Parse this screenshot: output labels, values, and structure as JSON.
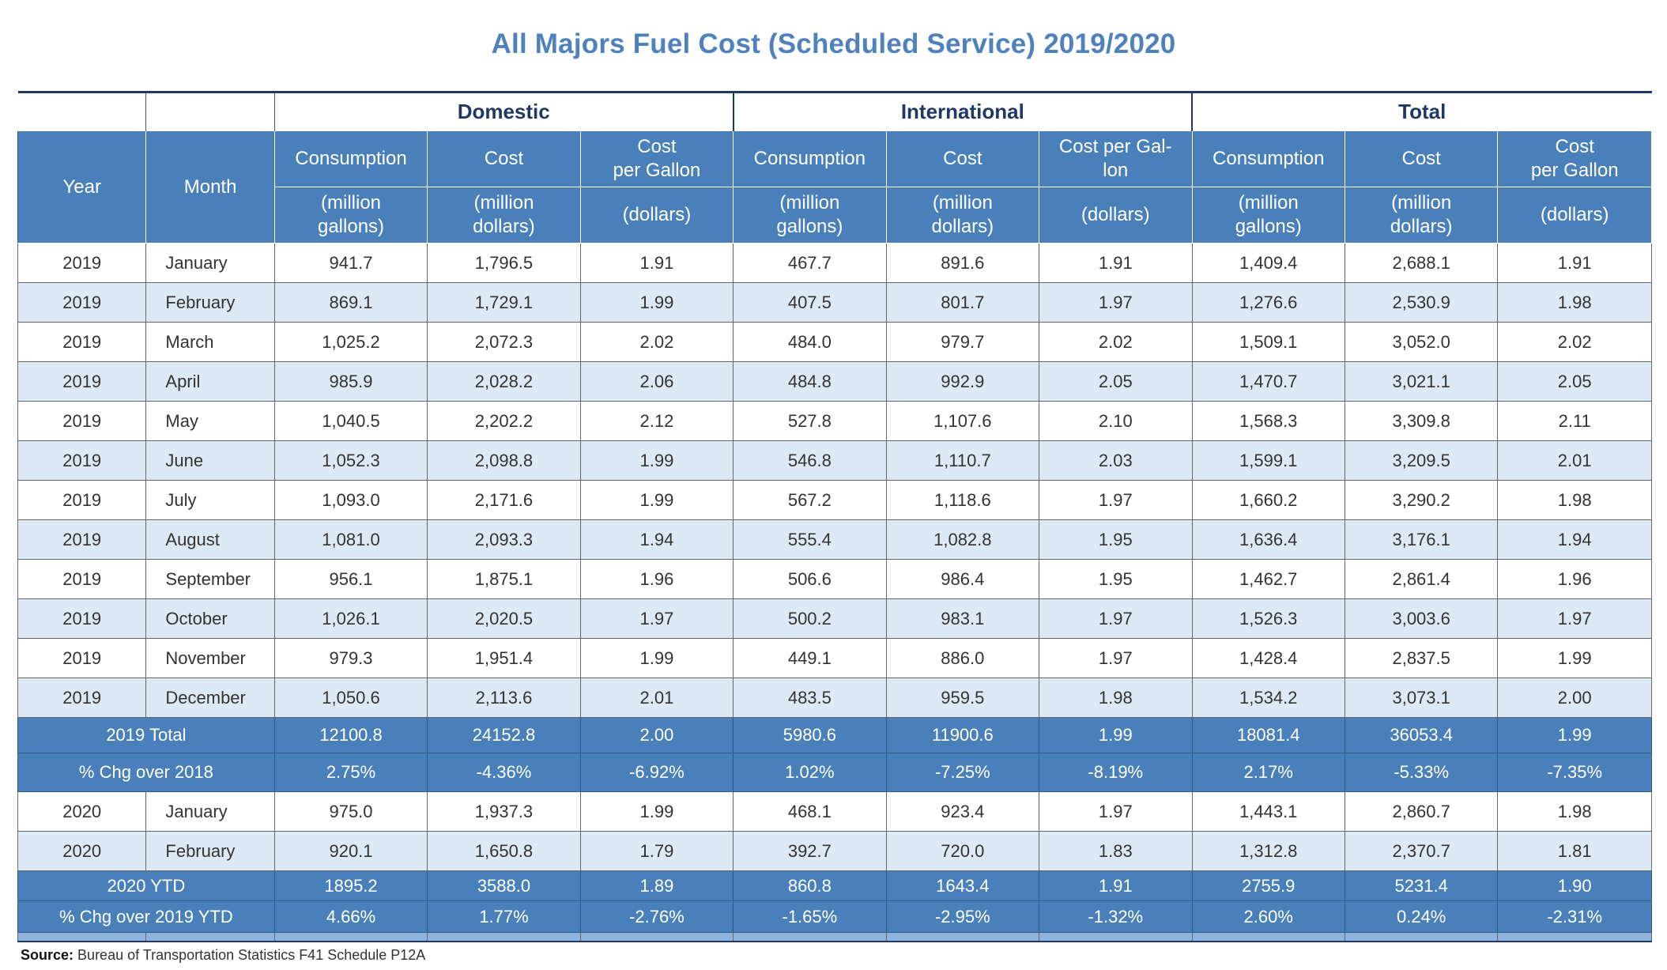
{
  "title": "All Majors Fuel Cost (Scheduled Service) 2019/2020",
  "groups": {
    "domestic": "Domestic",
    "international": "International",
    "total": "Total"
  },
  "headers": {
    "year": "Year",
    "month": "Month",
    "consumption": "Consumption",
    "cost": "Cost",
    "cost_per_gallon_line1": "Cost",
    "cost_per_gallon_line2": "per Gallon",
    "intl_cpg_line1": "Cost per Gal-",
    "intl_cpg_line2": "lon",
    "unit_gallons_1": "(million",
    "unit_gallons_2": "gallons)",
    "unit_dollars_1": "(million",
    "unit_dollars_2": "dollars)",
    "unit_per_gallon": "(dollars)"
  },
  "rows_2019": [
    {
      "year": "2019",
      "month": "January",
      "d": [
        "941.7",
        "1,796.5",
        "1.91"
      ],
      "i": [
        "467.7",
        "891.6",
        "1.91"
      ],
      "t": [
        "1,409.4",
        "2,688.1",
        "1.91"
      ]
    },
    {
      "year": "2019",
      "month": "February",
      "d": [
        "869.1",
        "1,729.1",
        "1.99"
      ],
      "i": [
        "407.5",
        "801.7",
        "1.97"
      ],
      "t": [
        "1,276.6",
        "2,530.9",
        "1.98"
      ]
    },
    {
      "year": "2019",
      "month": "March",
      "d": [
        "1,025.2",
        "2,072.3",
        "2.02"
      ],
      "i": [
        "484.0",
        "979.7",
        "2.02"
      ],
      "t": [
        "1,509.1",
        "3,052.0",
        "2.02"
      ]
    },
    {
      "year": "2019",
      "month": "April",
      "d": [
        "985.9",
        "2,028.2",
        "2.06"
      ],
      "i": [
        "484.8",
        "992.9",
        "2.05"
      ],
      "t": [
        "1,470.7",
        "3,021.1",
        "2.05"
      ]
    },
    {
      "year": "2019",
      "month": "May",
      "d": [
        "1,040.5",
        "2,202.2",
        "2.12"
      ],
      "i": [
        "527.8",
        "1,107.6",
        "2.10"
      ],
      "t": [
        "1,568.3",
        "3,309.8",
        "2.11"
      ]
    },
    {
      "year": "2019",
      "month": "June",
      "d": [
        "1,052.3",
        "2,098.8",
        "1.99"
      ],
      "i": [
        "546.8",
        "1,110.7",
        "2.03"
      ],
      "t": [
        "1,599.1",
        "3,209.5",
        "2.01"
      ]
    },
    {
      "year": "2019",
      "month": "July",
      "d": [
        "1,093.0",
        "2,171.6",
        "1.99"
      ],
      "i": [
        "567.2",
        "1,118.6",
        "1.97"
      ],
      "t": [
        "1,660.2",
        "3,290.2",
        "1.98"
      ]
    },
    {
      "year": "2019",
      "month": "August",
      "d": [
        "1,081.0",
        "2,093.3",
        "1.94"
      ],
      "i": [
        "555.4",
        "1,082.8",
        "1.95"
      ],
      "t": [
        "1,636.4",
        "3,176.1",
        "1.94"
      ]
    },
    {
      "year": "2019",
      "month": "September",
      "d": [
        "956.1",
        "1,875.1",
        "1.96"
      ],
      "i": [
        "506.6",
        "986.4",
        "1.95"
      ],
      "t": [
        "1,462.7",
        "2,861.4",
        "1.96"
      ]
    },
    {
      "year": "2019",
      "month": "October",
      "d": [
        "1,026.1",
        "2,020.5",
        "1.97"
      ],
      "i": [
        "500.2",
        "983.1",
        "1.97"
      ],
      "t": [
        "1,526.3",
        "3,003.6",
        "1.97"
      ]
    },
    {
      "year": "2019",
      "month": "November",
      "d": [
        "979.3",
        "1,951.4",
        "1.99"
      ],
      "i": [
        "449.1",
        "886.0",
        "1.97"
      ],
      "t": [
        "1,428.4",
        "2,837.5",
        "1.99"
      ]
    },
    {
      "year": "2019",
      "month": "December",
      "d": [
        "1,050.6",
        "2,113.6",
        "2.01"
      ],
      "i": [
        "483.5",
        "959.5",
        "1.98"
      ],
      "t": [
        "1,534.2",
        "3,073.1",
        "2.00"
      ]
    }
  ],
  "total_2019": {
    "label": "2019 Total",
    "values": [
      "12100.8",
      "24152.8",
      "2.00",
      "5980.6",
      "11900.6",
      "1.99",
      "18081.4",
      "36053.4",
      "1.99"
    ]
  },
  "chg_2018": {
    "label": "% Chg over 2018",
    "values": [
      "2.75%",
      "-4.36%",
      "-6.92%",
      "1.02%",
      "-7.25%",
      "-8.19%",
      "2.17%",
      "-5.33%",
      "-7.35%"
    ]
  },
  "rows_2020": [
    {
      "year": "2020",
      "month": "January",
      "d": [
        "975.0",
        "1,937.3",
        "1.99"
      ],
      "i": [
        "468.1",
        "923.4",
        "1.97"
      ],
      "t": [
        "1,443.1",
        "2,860.7",
        "1.98"
      ]
    },
    {
      "year": "2020",
      "month": "February",
      "d": [
        "920.1",
        "1,650.8",
        "1.79"
      ],
      "i": [
        "392.7",
        "720.0",
        "1.83"
      ],
      "t": [
        "1,312.8",
        "2,370.7",
        "1.81"
      ]
    }
  ],
  "ytd_2020": {
    "label": "2020 YTD",
    "values": [
      "1895.2",
      "3588.0",
      "1.89",
      "860.8",
      "1643.4",
      "1.91",
      "2755.9",
      "5231.4",
      "1.90"
    ]
  },
  "chg_2019_ytd": {
    "label": "% Chg over 2019 YTD",
    "values": [
      "4.66%",
      "1.77%",
      "-2.76%",
      "-1.65%",
      "-2.95%",
      "-1.32%",
      "2.60%",
      "0.24%",
      "-2.31%"
    ]
  },
  "source": {
    "label": "Source:",
    "text": "Bureau of Transportation Statistics F41 Schedule P12A"
  },
  "colors": {
    "title": "#4f81bd",
    "header_bg": "#4a80ba",
    "alt_row": "#ddeaf6",
    "group_text": "#1f3864"
  }
}
